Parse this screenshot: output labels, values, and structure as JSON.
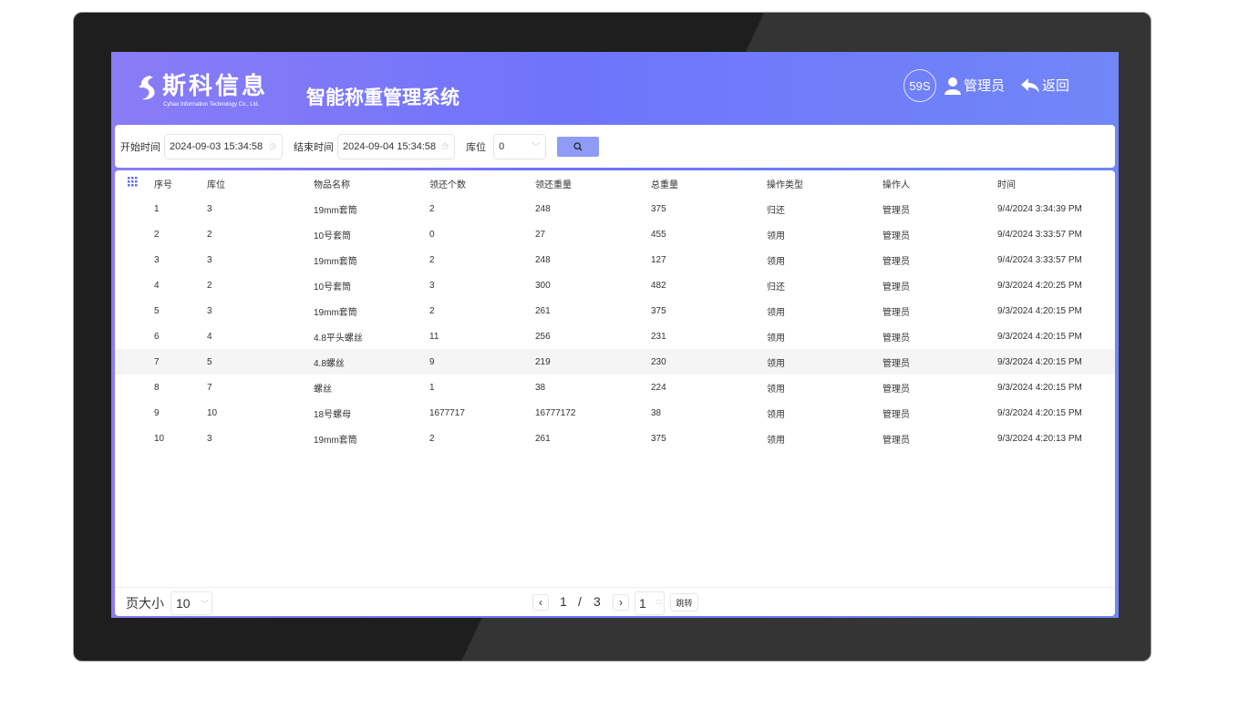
{
  "header": {
    "logo_name": "斯科信息",
    "logo_sub": "Cyhao Information Technology Co., Ltd.",
    "title": "智能称重管理系统",
    "timer": "59S",
    "user": "管理员",
    "back": "返回",
    "user_icon": "user-icon",
    "back_icon": "reply-arrow-icon"
  },
  "filter": {
    "start_label": "开始时间",
    "start_value": "2024-09-03 15:34:58",
    "end_label": "结束时间",
    "end_value": "2024-09-04 15:34:58",
    "location_label": "库位",
    "location_value": "0",
    "search_icon": "search-icon"
  },
  "table": {
    "columns": [
      "序号",
      "库位",
      "物品名称",
      "领还个数",
      "领还重量",
      "总重量",
      "操作类型",
      "操作人",
      "时间"
    ],
    "rows": [
      [
        "1",
        "3",
        "19mm套筒",
        "2",
        "248",
        "375",
        "归还",
        "管理员",
        "9/4/2024 3:34:39 PM"
      ],
      [
        "2",
        "2",
        "10号套筒",
        "0",
        "27",
        "455",
        "领用",
        "管理员",
        "9/4/2024 3:33:57 PM"
      ],
      [
        "3",
        "3",
        "19mm套筒",
        "2",
        "248",
        "127",
        "领用",
        "管理员",
        "9/4/2024 3:33:57 PM"
      ],
      [
        "4",
        "2",
        "10号套筒",
        "3",
        "300",
        "482",
        "归还",
        "管理员",
        "9/3/2024 4:20:25 PM"
      ],
      [
        "5",
        "3",
        "19mm套筒",
        "2",
        "261",
        "375",
        "领用",
        "管理员",
        "9/3/2024 4:20:15 PM"
      ],
      [
        "6",
        "4",
        "4.8平头螺丝",
        "11",
        "256",
        "231",
        "领用",
        "管理员",
        "9/3/2024 4:20:15 PM"
      ],
      [
        "7",
        "5",
        "4.8螺丝",
        "9",
        "219",
        "230",
        "领用",
        "管理员",
        "9/3/2024 4:20:15 PM"
      ],
      [
        "8",
        "7",
        "螺丝",
        "1",
        "38",
        "224",
        "领用",
        "管理员",
        "9/3/2024 4:20:15 PM"
      ],
      [
        "9",
        "10",
        "18号螺母",
        "1677717",
        "16777172",
        "38",
        "领用",
        "管理员",
        "9/3/2024 4:20:15 PM"
      ],
      [
        "10",
        "3",
        "19mm套筒",
        "2",
        "261",
        "375",
        "领用",
        "管理员",
        "9/3/2024 4:20:13 PM"
      ]
    ]
  },
  "pager": {
    "size_label": "页大小",
    "size_value": "10",
    "current": "1",
    "separator": "/",
    "total": "3",
    "jump_value": "1",
    "jump_label": "跳转"
  }
}
